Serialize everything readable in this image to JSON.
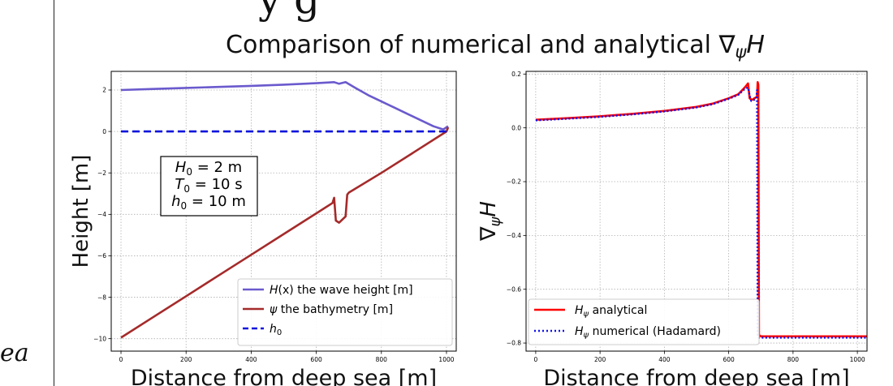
{
  "fragments": {
    "left": "ea",
    "top": "y g"
  },
  "figure": {
    "title_prefix": "Comparison of numerical and analytical ∇",
    "title_sub": "ψ",
    "title_var": "H"
  },
  "chart_data": [
    {
      "type": "line",
      "xlabel": "Distance from deep sea [m]",
      "ylabel": "Height [m]",
      "xlim": [
        -30,
        1030
      ],
      "ylim": [
        -10.6,
        2.9
      ],
      "xticks": [
        0,
        200,
        400,
        600,
        800,
        1000
      ],
      "yticks": [
        -10,
        -8,
        -6,
        -4,
        -2,
        0,
        2
      ],
      "grid": true,
      "legend_position": "lower-right",
      "annotation": {
        "lines": [
          {
            "var": "H",
            "sub": "0",
            "rest": " = 2 m"
          },
          {
            "var": "T",
            "sub": "0",
            "rest": " = 10 s"
          },
          {
            "var": "h",
            "sub": "0",
            "rest": " = 10 m"
          }
        ]
      },
      "series": [
        {
          "name": "H(x) the wave height [m]",
          "legend": {
            "var": "H",
            "arg": "(x)",
            "rest": " the wave height [m]"
          },
          "color": "#6a5acd",
          "style": "solid",
          "x": [
            0,
            100,
            200,
            300,
            400,
            500,
            600,
            655,
            670,
            690,
            720,
            760,
            800,
            840,
            880,
            920,
            960,
            990,
            1005
          ],
          "y": [
            2.0,
            2.05,
            2.1,
            2.15,
            2.2,
            2.26,
            2.33,
            2.38,
            2.3,
            2.38,
            2.1,
            1.75,
            1.45,
            1.15,
            0.85,
            0.55,
            0.25,
            0.1,
            0.25
          ]
        },
        {
          "name": "ψ the bathymetry [m]",
          "legend": {
            "var": "ψ",
            "arg": "",
            "rest": " the bathymetry [m]"
          },
          "color": "#a52a2a",
          "style": "solid",
          "x": [
            0,
            100,
            200,
            300,
            400,
            500,
            600,
            650,
            655,
            660,
            670,
            690,
            695,
            700,
            800,
            900,
            1000,
            1005
          ],
          "y": [
            -9.95,
            -8.95,
            -7.95,
            -6.95,
            -5.95,
            -4.95,
            -3.95,
            -3.45,
            -3.2,
            -4.3,
            -4.4,
            -4.1,
            -3.05,
            -2.95,
            -2.0,
            -1.0,
            0.0,
            0.2
          ]
        },
        {
          "name": "h₀",
          "legend": {
            "var": "h",
            "arg": "",
            "sub": "0",
            "rest": ""
          },
          "color": "#0a14dc",
          "style": "dashed",
          "x": [
            0,
            1000
          ],
          "y": [
            0,
            0
          ]
        }
      ]
    },
    {
      "type": "line",
      "xlabel": "Distance from deep sea [m]",
      "ylabel": "∇ψH",
      "ylabel_parts": {
        "pre": "∇",
        "sub": "ψ",
        "var": "H"
      },
      "xlim": [
        -30,
        1030
      ],
      "ylim": [
        -0.83,
        0.21
      ],
      "xticks": [
        0,
        200,
        400,
        600,
        800,
        1000
      ],
      "xtick_labels": [
        "0",
        "200",
        "400",
        "600",
        "800",
        "1000"
      ],
      "yticks": [
        -0.8,
        -0.6,
        -0.4,
        -0.2,
        0.0,
        0.2
      ],
      "ytick_labels": [
        "−0.8",
        "−0.6",
        "−0.4",
        "−0.2",
        "0.0",
        "0.2"
      ],
      "grid": true,
      "legend_position": "lower-left",
      "series": [
        {
          "name": "Hψ analytical",
          "legend": {
            "var": "H",
            "sub": "ψ",
            "rest": " analytical"
          },
          "color": "#ff0000",
          "style": "solid",
          "x": [
            0,
            100,
            200,
            300,
            400,
            500,
            550,
            600,
            630,
            650,
            660,
            665,
            670,
            675,
            680,
            688,
            690,
            692,
            694,
            700,
            800,
            1030
          ],
          "y": [
            0.03,
            0.036,
            0.043,
            0.052,
            0.063,
            0.078,
            0.09,
            0.11,
            0.125,
            0.15,
            0.165,
            0.11,
            0.105,
            0.105,
            0.11,
            0.115,
            0.17,
            0.16,
            -0.77,
            -0.775,
            -0.775,
            -0.775
          ]
        },
        {
          "name": "Hψ numerical (Hadamard)",
          "legend": {
            "var": "H",
            "sub": "ψ",
            "rest": " numerical (Hadamard)"
          },
          "color": "#1010ee",
          "style": "dotted",
          "x": [
            0,
            100,
            200,
            300,
            400,
            500,
            550,
            600,
            630,
            650,
            660,
            665,
            670,
            675,
            680,
            686,
            688,
            690,
            692,
            700,
            800,
            1030
          ],
          "y": [
            0.028,
            0.034,
            0.041,
            0.05,
            0.061,
            0.076,
            0.088,
            0.108,
            0.123,
            0.145,
            0.15,
            0.12,
            0.1,
            0.1,
            0.105,
            0.11,
            0.14,
            -0.77,
            -0.78,
            -0.78,
            -0.78,
            -0.78
          ]
        }
      ]
    }
  ]
}
